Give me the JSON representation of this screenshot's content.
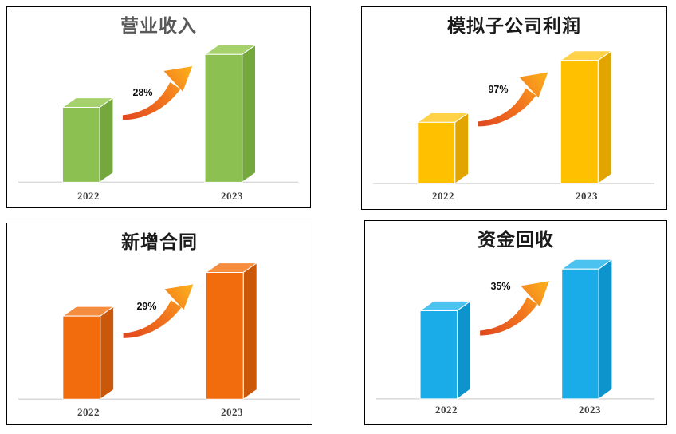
{
  "page": {
    "background": "#FFFFFF",
    "panel_border_color": "#000000",
    "axis_line_color": "#D9D9D9",
    "year_label_color": "#3F3F3F",
    "growth_label_color": "#111111"
  },
  "arrow_gradient": {
    "tail": "#E0481F",
    "mid": "#F1731E",
    "head": "#FCB11C"
  },
  "values_unit": "relative bar height in px (chart shows no value axis)",
  "chart_data": [
    {
      "type": "bar",
      "title": "营业收入",
      "title_color": "#595959",
      "categories": [
        "2022",
        "2023"
      ],
      "values": [
        95,
        162
      ],
      "growth_label": "28%",
      "bar_colors": {
        "front": "#8CC152",
        "top": "#A6D16C",
        "side": "#75A83C"
      }
    },
    {
      "type": "bar",
      "title": "模拟子公司利润",
      "title_color": "#1A1A1A",
      "categories": [
        "2022",
        "2023"
      ],
      "values": [
        77,
        155
      ],
      "growth_label": "97%",
      "bar_colors": {
        "front": "#FFC000",
        "top": "#FFD24A",
        "side": "#E2A500"
      }
    },
    {
      "type": "bar",
      "title": "新增合同",
      "title_color": "#1A1A1A",
      "categories": [
        "2022",
        "2023"
      ],
      "values": [
        105,
        160
      ],
      "growth_label": "29%",
      "bar_colors": {
        "front": "#F26B0D",
        "top": "#F68C3E",
        "side": "#CB5708"
      }
    },
    {
      "type": "bar",
      "title": "资金回收",
      "title_color": "#1A1A1A",
      "categories": [
        "2022",
        "2023"
      ],
      "values": [
        110,
        162
      ],
      "growth_label": "35%",
      "bar_colors": {
        "front": "#19ACE8",
        "top": "#4CC2F1",
        "side": "#0D94CC"
      }
    }
  ]
}
